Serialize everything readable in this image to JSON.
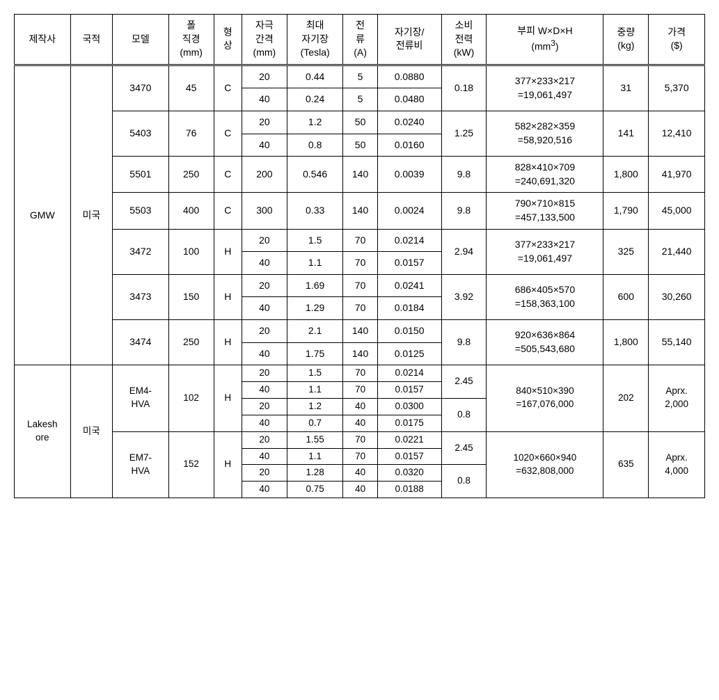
{
  "headers": {
    "maker": "제작사",
    "nationality": "국적",
    "model": "모델",
    "pole_dia": "폴\n직경\n(mm)",
    "shape": "형\n상",
    "gap": "자극\n간격\n(mm)",
    "max_field": "최대\n자기장\n(Tesla)",
    "current": "전\n류\n(A)",
    "ratio": "자기장/\n전류비",
    "power": "소비\n전력\n(kW)",
    "volume": "부피 W×D×H\n(mm³)",
    "weight": "중량\n(kg)",
    "price": "가격\n($)"
  },
  "makers": {
    "gmw": {
      "name": "GMW",
      "nat": "미국"
    },
    "lakeshore": {
      "name": "Lakesh\nore",
      "nat": "미국"
    }
  },
  "gmw": {
    "m3470": {
      "model": "3470",
      "pole": "45",
      "shape": "C",
      "r1": {
        "gap": "20",
        "field": "0.44",
        "cur": "5",
        "ratio": "0.0880"
      },
      "r2": {
        "gap": "40",
        "field": "0.24",
        "cur": "5",
        "ratio": "0.0480"
      },
      "power": "0.18",
      "vol": "377×233×217\n=19,061,497",
      "weight": "31",
      "price": "5,370"
    },
    "m5403": {
      "model": "5403",
      "pole": "76",
      "shape": "C",
      "r1": {
        "gap": "20",
        "field": "1.2",
        "cur": "50",
        "ratio": "0.0240"
      },
      "r2": {
        "gap": "40",
        "field": "0.8",
        "cur": "50",
        "ratio": "0.0160"
      },
      "power": "1.25",
      "vol": "582×282×359\n=58,920,516",
      "weight": "141",
      "price": "12,410"
    },
    "m5501": {
      "model": "5501",
      "pole": "250",
      "shape": "C",
      "r1": {
        "gap": "200",
        "field": "0.546",
        "cur": "140",
        "ratio": "0.0039"
      },
      "power": "9.8",
      "vol": "828×410×709\n=240,691,320",
      "weight": "1,800",
      "price": "41,970"
    },
    "m5503": {
      "model": "5503",
      "pole": "400",
      "shape": "C",
      "r1": {
        "gap": "300",
        "field": "0.33",
        "cur": "140",
        "ratio": "0.0024"
      },
      "power": "9.8",
      "vol": "790×710×815\n=457,133,500",
      "weight": "1,790",
      "price": "45,000"
    },
    "m3472": {
      "model": "3472",
      "pole": "100",
      "shape": "H",
      "r1": {
        "gap": "20",
        "field": "1.5",
        "cur": "70",
        "ratio": "0.0214"
      },
      "r2": {
        "gap": "40",
        "field": "1.1",
        "cur": "70",
        "ratio": "0.0157"
      },
      "power": "2.94",
      "vol": "377×233×217\n=19,061,497",
      "weight": "325",
      "price": "21,440"
    },
    "m3473": {
      "model": "3473",
      "pole": "150",
      "shape": "H",
      "r1": {
        "gap": "20",
        "field": "1.69",
        "cur": "70",
        "ratio": "0.0241"
      },
      "r2": {
        "gap": "40",
        "field": "1.29",
        "cur": "70",
        "ratio": "0.0184"
      },
      "power": "3.92",
      "vol": "686×405×570\n=158,363,100",
      "weight": "600",
      "price": "30,260"
    },
    "m3474": {
      "model": "3474",
      "pole": "250",
      "shape": "H",
      "r1": {
        "gap": "20",
        "field": "2.1",
        "cur": "140",
        "ratio": "0.0150"
      },
      "r2": {
        "gap": "40",
        "field": "1.75",
        "cur": "140",
        "ratio": "0.0125"
      },
      "power": "9.8",
      "vol": "920×636×864\n=505,543,680",
      "weight": "1,800",
      "price": "55,140"
    }
  },
  "ls": {
    "em4": {
      "model": "EM4-\nHVA",
      "pole": "102",
      "shape": "H",
      "r1": {
        "gap": "20",
        "field": "1.5",
        "cur": "70",
        "ratio": "0.0214"
      },
      "r2": {
        "gap": "40",
        "field": "1.1",
        "cur": "70",
        "ratio": "0.0157"
      },
      "r3": {
        "gap": "20",
        "field": "1.2",
        "cur": "40",
        "ratio": "0.0300"
      },
      "r4": {
        "gap": "40",
        "field": "0.7",
        "cur": "40",
        "ratio": "0.0175"
      },
      "p1": "2.45",
      "p2": "0.8",
      "vol": "840×510×390\n=167,076,000",
      "weight": "202",
      "price": "Aprx.\n2,000"
    },
    "em7": {
      "model": "EM7-\nHVA",
      "pole": "152",
      "shape": "H",
      "r1": {
        "gap": "20",
        "field": "1.55",
        "cur": "70",
        "ratio": "0.0221"
      },
      "r2": {
        "gap": "40",
        "field": "1.1",
        "cur": "70",
        "ratio": "0.0157"
      },
      "r3": {
        "gap": "20",
        "field": "1.28",
        "cur": "40",
        "ratio": "0.0320"
      },
      "r4": {
        "gap": "40",
        "field": "0.75",
        "cur": "40",
        "ratio": "0.0188"
      },
      "p1": "2.45",
      "p2": "0.8",
      "vol": "1020×660×940\n=632,808,000",
      "weight": "635",
      "price": "Aprx.\n4,000"
    }
  }
}
